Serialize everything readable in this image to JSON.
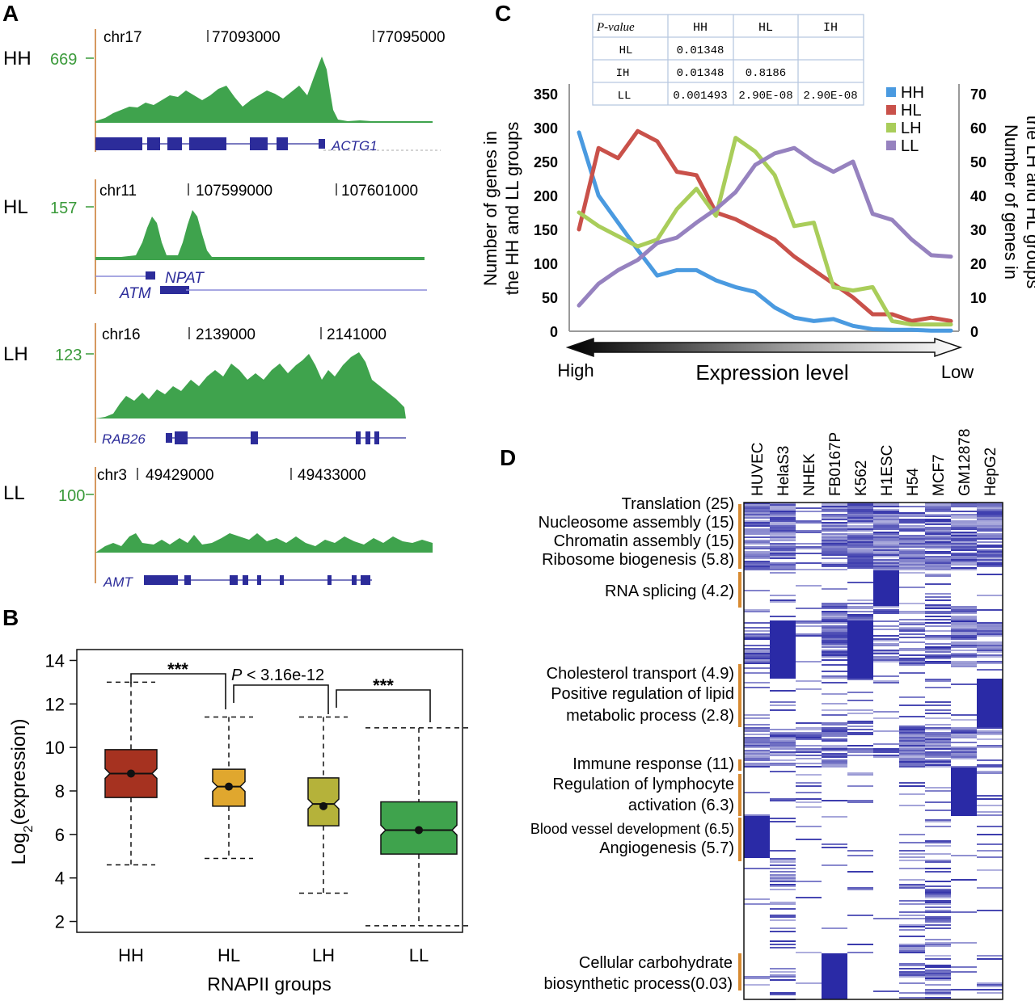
{
  "panels": {
    "A": "A",
    "B": "B",
    "C": "C",
    "D": "D"
  },
  "colors": {
    "green": "#3fa34d",
    "green_label": "#3a9a3a",
    "gene_blue": "#2c2c9a",
    "orange_axis": "#c8762a",
    "hh_line": "#4a9ae0",
    "hl_line": "#c9514a",
    "lh_line": "#a9cd5a",
    "ll_line": "#9682bf",
    "heat_blue": "#2a2aa6",
    "box_hh": "#a63220",
    "box_hl": "#e0a72e",
    "box_lh": "#b5b23a",
    "box_ll": "#3fa34d"
  },
  "panel_a": {
    "tracks": [
      {
        "group": "HH",
        "scale": "669",
        "chrom": "chr17",
        "pos1": "77093000",
        "pos2": "77095000",
        "genes": [
          "ACTG1"
        ]
      },
      {
        "group": "HL",
        "scale": "157",
        "chrom": "chr11",
        "pos1": "107599000",
        "pos2": "107601000",
        "genes": [
          "NPAT",
          "ATM"
        ]
      },
      {
        "group": "LH",
        "scale": "123",
        "chrom": "chr16",
        "pos1": "2139000",
        "pos2": "2141000",
        "genes": [
          "RAB26"
        ]
      },
      {
        "group": "LL",
        "scale": "100",
        "chrom": "chr3",
        "pos1": "49429000",
        "pos2": "49433000",
        "genes": [
          "AMT"
        ]
      }
    ]
  },
  "panel_b": {
    "ylabel": "Log",
    "ylabel_sub": "2",
    "ylabel_rest": "(expression)",
    "xlabel": "RNAPII groups",
    "sig1": "***",
    "sig2_p": "P",
    "sig2_rest": " < 3.16e-12",
    "sig3": "***"
  },
  "panel_c": {
    "table": {
      "header": [
        "P-value",
        "HH",
        "HL",
        "IH"
      ],
      "rows": [
        [
          "HL",
          "0.01348",
          "",
          ""
        ],
        [
          "IH",
          "0.01348",
          "0.8186",
          ""
        ],
        [
          "LL",
          "0.001493",
          "2.90E-08",
          "2.90E-08"
        ]
      ]
    },
    "left_ylabel_1": "Number of genes in",
    "left_ylabel_2": "the HH and LL groups",
    "right_ylabel_1": "Number of genes in",
    "right_ylabel_2": "the LH and HL groups",
    "xlabel": "Expression level",
    "high": "High",
    "low": "Low"
  },
  "panel_d": {
    "cell_lines": [
      "HUVEC",
      "HelaS3",
      "NHEK",
      "FB0167P",
      "K562",
      "H1ESC",
      "H54",
      "MCF7",
      "GM12878",
      "HepG2"
    ],
    "annotations": [
      "Translation (25)",
      "Nucleosome assembly (15)",
      "Chromatin assembly (15)",
      "Ribosome biogenesis (5.8)",
      "RNA splicing (4.2)",
      "Cholesterol transport (4.9)",
      "Positive regulation of lipid",
      "metabolic process (2.8)",
      "Immune response (11)",
      "Regulation of lymphocyte",
      "activation (6.3)",
      "Blood vessel development (6.5)",
      "Angiogenesis (5.7)",
      "Cellular carbohydrate",
      "biosynthetic process(0.03)"
    ]
  },
  "chart_data": [
    {
      "type": "box",
      "title": "",
      "xlabel": "RNAPII groups",
      "ylabel": "Log2(expression)",
      "categories": [
        "HH",
        "HL",
        "LH",
        "LL"
      ],
      "ylim": [
        1.5,
        14.5
      ],
      "yticks": [
        2,
        4,
        6,
        8,
        10,
        12,
        14
      ],
      "boxes": [
        {
          "name": "HH",
          "whisker_low": 4.6,
          "q1": 7.7,
          "median": 8.8,
          "q3": 9.9,
          "whisker_high": 13.0,
          "mean": 8.8
        },
        {
          "name": "HL",
          "whisker_low": 4.9,
          "q1": 7.3,
          "median": 8.2,
          "q3": 9.0,
          "whisker_high": 11.4,
          "mean": 8.2
        },
        {
          "name": "LH",
          "whisker_low": 3.3,
          "q1": 6.4,
          "median": 7.4,
          "q3": 8.6,
          "whisker_high": 11.4,
          "mean": 7.3
        },
        {
          "name": "LL",
          "whisker_low": 1.8,
          "q1": 5.1,
          "median": 6.2,
          "q3": 7.5,
          "whisker_high": 10.9,
          "mean": 6.2
        }
      ],
      "annotations": [
        "***",
        "P < 3.16e-12",
        "***"
      ]
    },
    {
      "type": "line",
      "xlabel": "Expression level",
      "ylabel_left": "Number of genes in the HH and LL groups",
      "ylabel_right": "Number of genes in the LH and HL groups",
      "ylim_left": [
        0,
        350
      ],
      "ylim_right": [
        0,
        70
      ],
      "yticks_left": [
        0,
        50,
        100,
        150,
        200,
        250,
        300,
        350
      ],
      "yticks_right": [
        0,
        10,
        20,
        30,
        40,
        50,
        60,
        70
      ],
      "x": [
        1,
        2,
        3,
        4,
        5,
        6,
        7,
        8,
        9,
        10,
        11,
        12,
        13,
        14,
        15,
        16,
        17,
        18,
        19,
        20
      ],
      "series": [
        {
          "name": "HH",
          "axis": "left",
          "values": [
            293,
            200,
            160,
            120,
            82,
            90,
            90,
            75,
            65,
            58,
            35,
            20,
            15,
            18,
            8,
            3,
            2,
            2,
            1,
            1
          ]
        },
        {
          "name": "HL",
          "axis": "right",
          "values": [
            30,
            54,
            51,
            59,
            56,
            47,
            46,
            35,
            33,
            30,
            27,
            22,
            18,
            14,
            10,
            5,
            5,
            3,
            4,
            3
          ]
        },
        {
          "name": "LH",
          "axis": "right",
          "values": [
            35,
            31,
            28,
            25,
            27,
            36,
            42,
            34,
            57,
            53,
            46,
            31,
            32,
            13,
            12,
            13,
            3,
            2,
            2,
            2
          ]
        },
        {
          "name": "LL",
          "axis": "left",
          "values": [
            38,
            70,
            90,
            105,
            130,
            138,
            160,
            180,
            205,
            245,
            262,
            270,
            250,
            235,
            250,
            173,
            164,
            135,
            112,
            110
          ]
        }
      ],
      "legend": [
        "HH",
        "HL",
        "LH",
        "LL"
      ],
      "legend_position": "top-right"
    }
  ]
}
